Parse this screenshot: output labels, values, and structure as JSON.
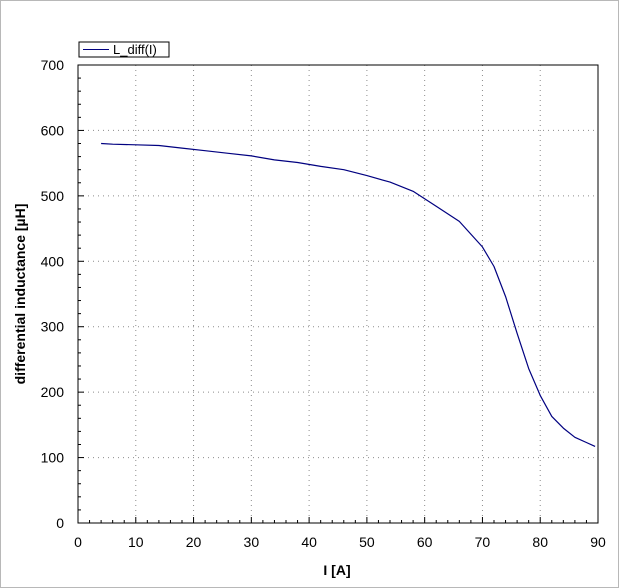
{
  "chart_data": {
    "type": "line",
    "title": "",
    "xlabel": "I [A]",
    "ylabel": "differential inductance [µH]",
    "xlim": [
      0,
      90
    ],
    "ylim": [
      0,
      700
    ],
    "x_ticks": [
      0,
      10,
      20,
      30,
      40,
      50,
      60,
      70,
      80,
      90
    ],
    "y_ticks": [
      0,
      100,
      200,
      300,
      400,
      500,
      600,
      700
    ],
    "x_tick_labels": [
      "0",
      "10",
      "20",
      "30",
      "40",
      "50",
      "60",
      "70",
      "80",
      "90"
    ],
    "y_tick_labels": [
      "0",
      "100",
      "200",
      "300",
      "400",
      "500",
      "600",
      "700"
    ],
    "grid": true,
    "legend_position": "top-left",
    "colors": {
      "series": "#000080",
      "grid": "#8c8c8c",
      "axes": "#000000",
      "frame": "#b8b8b8"
    },
    "series": [
      {
        "name": "L_diff(I)",
        "x": [
          4,
          6,
          10,
          14,
          18,
          22,
          26,
          30,
          34,
          38,
          42,
          46,
          50,
          54,
          58,
          62,
          66,
          70,
          72,
          74,
          76,
          78,
          80,
          82,
          84,
          86,
          88,
          89.5
        ],
        "y": [
          580,
          579,
          578,
          577,
          573,
          569,
          565,
          561,
          555,
          551,
          545,
          540,
          531,
          521,
          507,
          484,
          461,
          422,
          392,
          346,
          290,
          236,
          195,
          163,
          145,
          131,
          123,
          117
        ]
      }
    ]
  }
}
